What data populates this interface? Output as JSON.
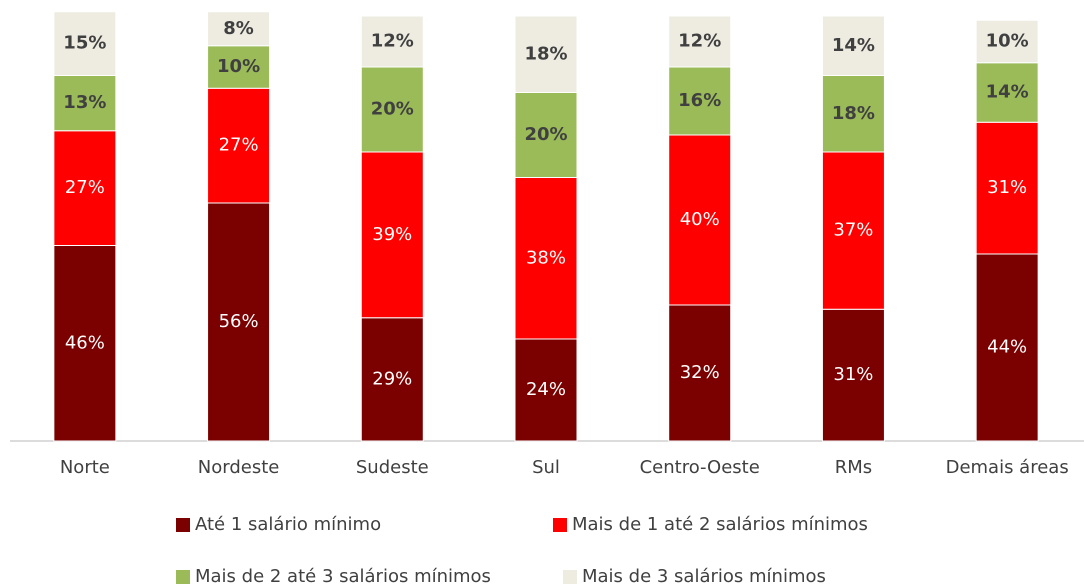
{
  "chart_data": {
    "type": "stacked_bar",
    "categories": [
      "Norte",
      "Nordeste",
      "Sudeste",
      "Sul",
      "Centro-Oeste",
      "RMs",
      "Demais áreas"
    ],
    "series": [
      {
        "name": "Até 1 salário mínimo",
        "color": "#7b0000",
        "label_color": "#ffffff",
        "label_bold": false,
        "values": [
          46,
          56,
          29,
          24,
          32,
          31,
          44
        ],
        "value_labels": [
          "46%",
          "56%",
          "29%",
          "24%",
          "32%",
          "31%",
          "44%"
        ]
      },
      {
        "name": "Mais de 1 até 2 salários mínimos",
        "color": "#ff0000",
        "label_color": "#ffffff",
        "label_bold": false,
        "values": [
          27,
          27,
          39,
          38,
          40,
          37,
          31
        ],
        "value_labels": [
          "27%",
          "27%",
          "39%",
          "38%",
          "40%",
          "37%",
          "31%"
        ]
      },
      {
        "name": "Mais de 2 até 3 salários mínimos",
        "color": "#9bbb59",
        "label_color": "#404040",
        "label_bold": true,
        "values": [
          13,
          10,
          20,
          20,
          16,
          18,
          14
        ],
        "value_labels": [
          "13%",
          "10%",
          "20%",
          "20%",
          "16%",
          "18%",
          "14%"
        ]
      },
      {
        "name": "Mais de 3 salários mínimos",
        "color": "#eeece1",
        "label_color": "#404040",
        "label_bold": true,
        "values": [
          15,
          8,
          12,
          18,
          12,
          14,
          10
        ],
        "value_labels": [
          "15%",
          "8%",
          "12%",
          "18%",
          "12%",
          "14%",
          "10%"
        ]
      }
    ]
  }
}
